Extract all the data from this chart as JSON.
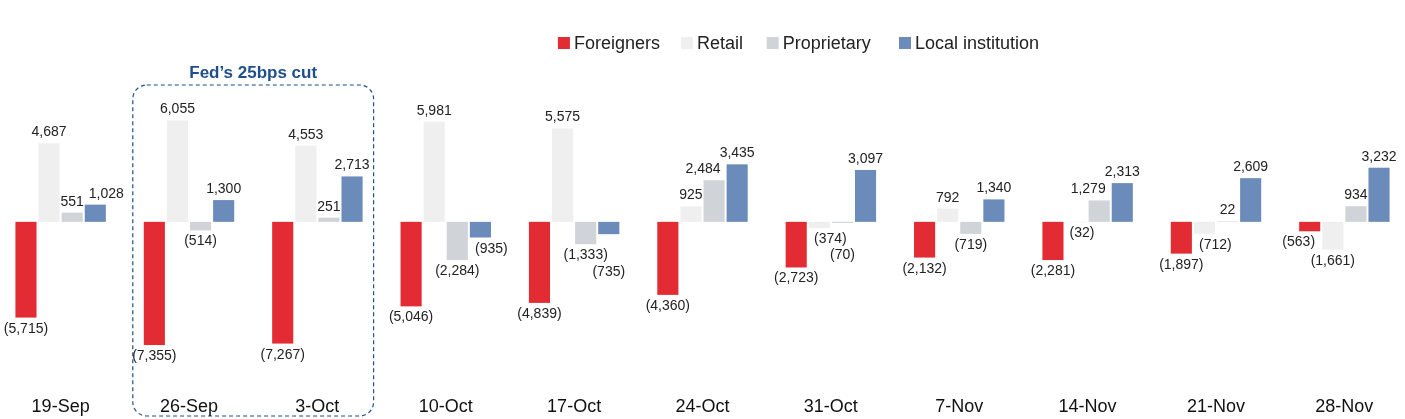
{
  "chart_data": {
    "type": "bar",
    "categories": [
      "19-Sep",
      "26-Sep",
      "3-Oct",
      "10-Oct",
      "17-Oct",
      "24-Oct",
      "31-Oct",
      "7-Nov",
      "14-Nov",
      "21-Nov",
      "28-Nov"
    ],
    "series": [
      {
        "name": "Foreigners",
        "color": "#e32b33",
        "values": [
          -5715,
          -7355,
          -7267,
          -5046,
          -4839,
          -4360,
          -2723,
          -2132,
          -2281,
          -1897,
          -563
        ],
        "value_labels": [
          "(5,715)",
          "(7,355)",
          "(7,267)",
          "(5,046)",
          "(4,839)",
          "(4,360)",
          "(2,723)",
          "(2,132)",
          "(2,281)",
          "(1,897)",
          "(563)"
        ]
      },
      {
        "name": "Retail",
        "color": "#efefef",
        "values": [
          4687,
          6055,
          4553,
          5981,
          5575,
          925,
          -374,
          792,
          -32,
          -712,
          -1661
        ],
        "value_labels": [
          "4,687",
          "6,055",
          "4,553",
          "5,981",
          "5,575",
          "925",
          "(374)",
          "792",
          "(32)",
          "(712)",
          "(1,661)"
        ]
      },
      {
        "name": "Proprietary",
        "color": "#d0d3d8",
        "values": [
          551,
          -514,
          251,
          -2284,
          -1333,
          2484,
          -70,
          -719,
          1279,
          22,
          934
        ],
        "value_labels": [
          "551",
          "(514)",
          "251",
          "(2,284)",
          "(1,333)",
          "2,484",
          "(70)",
          "(719)",
          "1,279",
          "22",
          "934"
        ]
      },
      {
        "name": "Local institution",
        "color": "#6b8cba",
        "values": [
          1028,
          1300,
          2713,
          -935,
          -735,
          3435,
          3097,
          1340,
          2313,
          2609,
          3232
        ],
        "value_labels": [
          "1,028",
          "1,300",
          "2,713",
          "(935)",
          "(735)",
          "3,435",
          "3,097",
          "1,340",
          "2,313",
          "2,609",
          "3,232"
        ]
      }
    ],
    "legend": "top",
    "annotations": [
      "Fed’s 25bps cut"
    ]
  }
}
